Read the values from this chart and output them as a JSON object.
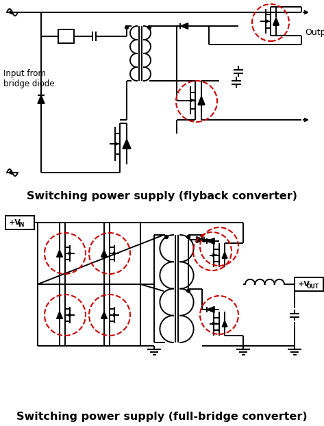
{
  "title1": "Switching power supply (flyback converter)",
  "title2": "Switching power supply (full-bridge converter)",
  "output_label": "Output",
  "input_label": "Input from\nbridge diode",
  "line_color": "#000000",
  "circle_color": "#cc0000",
  "bg_color": "#ffffff",
  "title_fontsize": 11.5,
  "fig_width": 4.73,
  "fig_height": 6.22,
  "dpi": 100
}
